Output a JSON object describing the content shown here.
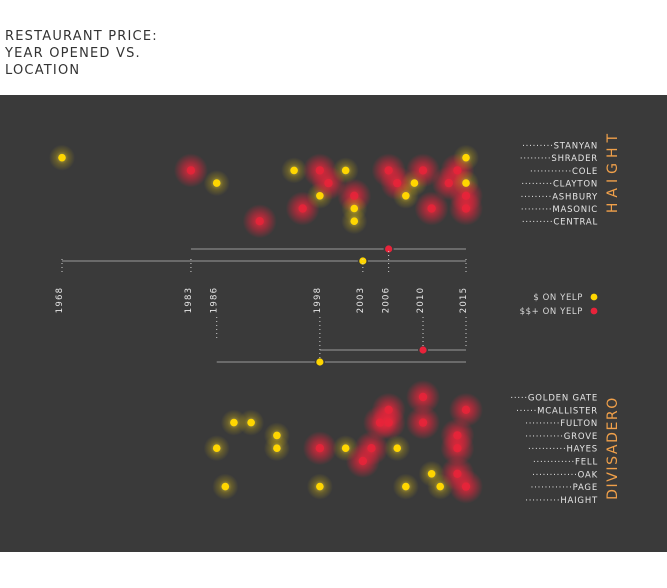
{
  "title": "RESTAURANT PRICE:\nYEAR OPENED VS.\nLOCATION",
  "colors": {
    "background": "#3a3a3a",
    "cheap": "#ffd600",
    "expensive": "#e8233a",
    "accent": "#f0a04a",
    "street": "#e6e6e6",
    "timeline": "#6a6a6a"
  },
  "chart_data": {
    "type": "scatter",
    "title": "RESTAURANT PRICE: YEAR OPENED VS. LOCATION",
    "xlim": [
      1968,
      2015
    ],
    "year_ticks": [
      1968,
      1983,
      1986,
      1998,
      2003,
      2006,
      2010,
      2015
    ],
    "legend": [
      {
        "label": "$ ON YELP",
        "color": "#ffd600"
      },
      {
        "label": "$$+ ON YELP",
        "color": "#e8233a"
      }
    ],
    "neighborhoods": [
      {
        "name": "HAIGHT",
        "streets": [
          "STANYAN",
          "SHRADER",
          "COLE",
          "CLAYTON",
          "ASHBURY",
          "MASONIC",
          "CENTRAL"
        ],
        "points": [
          {
            "year": 1968,
            "street": "SHRADER",
            "price": "$"
          },
          {
            "year": 1983,
            "street": "COLE",
            "price": "$$+"
          },
          {
            "year": 1986,
            "street": "CLAYTON",
            "price": "$"
          },
          {
            "year": 1991,
            "street": "CENTRAL",
            "price": "$$+"
          },
          {
            "year": 1995,
            "street": "COLE",
            "price": "$"
          },
          {
            "year": 1996,
            "street": "MASONIC",
            "price": "$$+"
          },
          {
            "year": 1998,
            "street": "ASHBURY",
            "price": "$"
          },
          {
            "year": 1998,
            "street": "COLE",
            "price": "$$+"
          },
          {
            "year": 1999,
            "street": "CLAYTON",
            "price": "$$+"
          },
          {
            "year": 2001,
            "street": "COLE",
            "price": "$"
          },
          {
            "year": 2002,
            "street": "ASHBURY",
            "price": "$$+"
          },
          {
            "year": 2002,
            "street": "MASONIC",
            "price": "$"
          },
          {
            "year": 2002,
            "street": "CENTRAL",
            "price": "$"
          },
          {
            "year": 2006,
            "street": "COLE",
            "price": "$$+"
          },
          {
            "year": 2007,
            "street": "CLAYTON",
            "price": "$$+"
          },
          {
            "year": 2008,
            "street": "ASHBURY",
            "price": "$"
          },
          {
            "year": 2009,
            "street": "CLAYTON",
            "price": "$"
          },
          {
            "year": 2010,
            "street": "COLE",
            "price": "$$+"
          },
          {
            "year": 2011,
            "street": "MASONIC",
            "price": "$$+"
          },
          {
            "year": 2013,
            "street": "CLAYTON",
            "price": "$$+"
          },
          {
            "year": 2014,
            "street": "COLE",
            "price": "$$+"
          },
          {
            "year": 2015,
            "street": "SHRADER",
            "price": "$"
          },
          {
            "year": 2015,
            "street": "CLAYTON",
            "price": "$"
          },
          {
            "year": 2015,
            "street": "ASHBURY",
            "price": "$$+"
          },
          {
            "year": 2015,
            "street": "MASONIC",
            "price": "$$+"
          }
        ],
        "range_lines": [
          {
            "start": 1983,
            "end": 2015,
            "marker": 2006,
            "price": "$$+"
          },
          {
            "start": 1968,
            "end": 2015,
            "marker": 2003,
            "price": "$"
          }
        ]
      },
      {
        "name": "DIVISADERO",
        "streets": [
          "GOLDEN GATE",
          "MCALLISTER",
          "FULTON",
          "GROVE",
          "HAYES",
          "FELL",
          "OAK",
          "PAGE",
          "HAIGHT"
        ],
        "points": [
          {
            "year": 1986,
            "street": "HAYES",
            "price": "$"
          },
          {
            "year": 1987,
            "street": "PAGE",
            "price": "$"
          },
          {
            "year": 1988,
            "street": "FULTON",
            "price": "$"
          },
          {
            "year": 1990,
            "street": "FULTON",
            "price": "$"
          },
          {
            "year": 1993,
            "street": "GROVE",
            "price": "$"
          },
          {
            "year": 1993,
            "street": "HAYES",
            "price": "$"
          },
          {
            "year": 1998,
            "street": "HAYES",
            "price": "$$+"
          },
          {
            "year": 1998,
            "street": "PAGE",
            "price": "$"
          },
          {
            "year": 2001,
            "street": "HAYES",
            "price": "$"
          },
          {
            "year": 2003,
            "street": "FELL",
            "price": "$$+"
          },
          {
            "year": 2004,
            "street": "HAYES",
            "price": "$$+"
          },
          {
            "year": 2005,
            "street": "FULTON",
            "price": "$$+"
          },
          {
            "year": 2006,
            "street": "MCALLISTER",
            "price": "$$+"
          },
          {
            "year": 2006,
            "street": "FULTON",
            "price": "$$+"
          },
          {
            "year": 2007,
            "street": "HAYES",
            "price": "$"
          },
          {
            "year": 2008,
            "street": "PAGE",
            "price": "$"
          },
          {
            "year": 2010,
            "street": "GOLDEN GATE",
            "price": "$$+"
          },
          {
            "year": 2010,
            "street": "FULTON",
            "price": "$$+"
          },
          {
            "year": 2011,
            "street": "OAK",
            "price": "$"
          },
          {
            "year": 2012,
            "street": "PAGE",
            "price": "$"
          },
          {
            "year": 2014,
            "street": "GROVE",
            "price": "$$+"
          },
          {
            "year": 2014,
            "street": "HAYES",
            "price": "$$+"
          },
          {
            "year": 2014,
            "street": "OAK",
            "price": "$$+"
          },
          {
            "year": 2015,
            "street": "MCALLISTER",
            "price": "$$+"
          },
          {
            "year": 2015,
            "street": "PAGE",
            "price": "$$+"
          }
        ],
        "range_lines": [
          {
            "start": 1998,
            "end": 2015,
            "marker": 2010,
            "price": "$$+"
          },
          {
            "start": 1986,
            "end": 2015,
            "marker": 1998,
            "price": "$"
          }
        ]
      }
    ]
  }
}
